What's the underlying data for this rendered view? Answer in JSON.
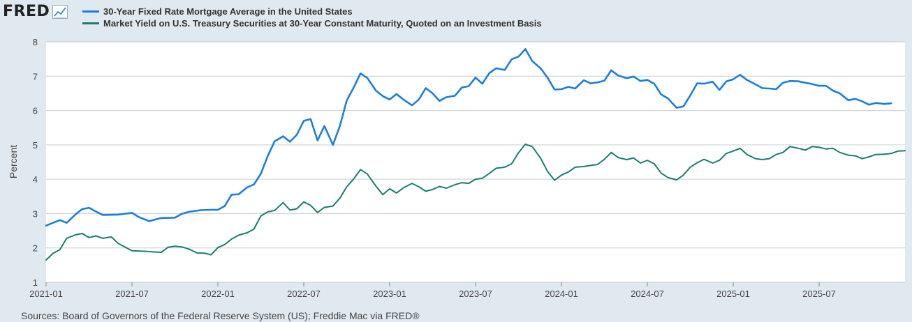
{
  "header": {
    "logo_text": "FRED",
    "logo_icon": "line-chart-icon"
  },
  "legend": [
    {
      "label": "30-Year Fixed Rate Mortgage Average in the United States",
      "color": "#1a7ee0"
    },
    {
      "label": "Market Yield on U.S. Treasury Securities at 30-Year Constant Maturity, Quoted on an Investment Basis",
      "color": "#177e6f"
    }
  ],
  "footer": {
    "source": "Sources: Board of Governors of the Federal Reserve System (US); Freddie Mac via FRED®"
  },
  "chart_data": {
    "type": "line",
    "title": "",
    "xlabel": "",
    "ylabel": "Percent",
    "ylim": [
      1,
      8
    ],
    "yticks": [
      1,
      2,
      3,
      4,
      5,
      6,
      7,
      8
    ],
    "xlim": [
      2021.0,
      2026.0
    ],
    "xticks": [
      {
        "label": "2021-01",
        "t": 2021.0
      },
      {
        "label": "2021-07",
        "t": 2021.5
      },
      {
        "label": "2022-01",
        "t": 2022.0
      },
      {
        "label": "2022-07",
        "t": 2022.5
      },
      {
        "label": "2023-01",
        "t": 2023.0
      },
      {
        "label": "2023-07",
        "t": 2023.5
      },
      {
        "label": "2024-01",
        "t": 2024.0
      },
      {
        "label": "2024-07",
        "t": 2024.5
      },
      {
        "label": "2025-01",
        "t": 2025.0
      },
      {
        "label": "2025-07",
        "t": 2025.5
      }
    ],
    "series": [
      {
        "name": "30-Year Fixed Rate Mortgage Average in the United States",
        "color": "#1a7ee0",
        "points": [
          [
            2021.0,
            2.65
          ],
          [
            2021.04,
            2.73
          ],
          [
            2021.08,
            2.81
          ],
          [
            2021.12,
            2.73
          ],
          [
            2021.17,
            2.97
          ],
          [
            2021.21,
            3.13
          ],
          [
            2021.25,
            3.17
          ],
          [
            2021.29,
            3.06
          ],
          [
            2021.33,
            2.96
          ],
          [
            2021.42,
            2.97
          ],
          [
            2021.5,
            3.02
          ],
          [
            2021.54,
            2.9
          ],
          [
            2021.6,
            2.78
          ],
          [
            2021.67,
            2.87
          ],
          [
            2021.75,
            2.88
          ],
          [
            2021.79,
            2.99
          ],
          [
            2021.83,
            3.05
          ],
          [
            2021.9,
            3.1
          ],
          [
            2021.96,
            3.11
          ],
          [
            2022.0,
            3.11
          ],
          [
            2022.04,
            3.22
          ],
          [
            2022.08,
            3.55
          ],
          [
            2022.12,
            3.56
          ],
          [
            2022.17,
            3.76
          ],
          [
            2022.21,
            3.85
          ],
          [
            2022.25,
            4.16
          ],
          [
            2022.29,
            4.67
          ],
          [
            2022.33,
            5.1
          ],
          [
            2022.38,
            5.25
          ],
          [
            2022.42,
            5.09
          ],
          [
            2022.46,
            5.3
          ],
          [
            2022.5,
            5.7
          ],
          [
            2022.54,
            5.75
          ],
          [
            2022.58,
            5.13
          ],
          [
            2022.62,
            5.55
          ],
          [
            2022.67,
            5.0
          ],
          [
            2022.71,
            5.55
          ],
          [
            2022.75,
            6.29
          ],
          [
            2022.79,
            6.66
          ],
          [
            2022.83,
            7.08
          ],
          [
            2022.87,
            6.95
          ],
          [
            2022.92,
            6.58
          ],
          [
            2022.96,
            6.42
          ],
          [
            2023.0,
            6.32
          ],
          [
            2023.04,
            6.48
          ],
          [
            2023.08,
            6.32
          ],
          [
            2023.13,
            6.15
          ],
          [
            2023.17,
            6.32
          ],
          [
            2023.21,
            6.65
          ],
          [
            2023.25,
            6.5
          ],
          [
            2023.29,
            6.28
          ],
          [
            2023.33,
            6.39
          ],
          [
            2023.38,
            6.43
          ],
          [
            2023.42,
            6.67
          ],
          [
            2023.46,
            6.71
          ],
          [
            2023.5,
            6.96
          ],
          [
            2023.54,
            6.78
          ],
          [
            2023.58,
            7.09
          ],
          [
            2023.62,
            7.23
          ],
          [
            2023.67,
            7.18
          ],
          [
            2023.71,
            7.49
          ],
          [
            2023.75,
            7.57
          ],
          [
            2023.79,
            7.79
          ],
          [
            2023.83,
            7.44
          ],
          [
            2023.88,
            7.22
          ],
          [
            2023.92,
            6.95
          ],
          [
            2023.96,
            6.61
          ],
          [
            2024.0,
            6.62
          ],
          [
            2024.04,
            6.69
          ],
          [
            2024.08,
            6.64
          ],
          [
            2024.13,
            6.88
          ],
          [
            2024.17,
            6.79
          ],
          [
            2024.21,
            6.82
          ],
          [
            2024.25,
            6.87
          ],
          [
            2024.29,
            7.17
          ],
          [
            2024.33,
            7.02
          ],
          [
            2024.38,
            6.94
          ],
          [
            2024.42,
            6.99
          ],
          [
            2024.46,
            6.86
          ],
          [
            2024.5,
            6.89
          ],
          [
            2024.54,
            6.78
          ],
          [
            2024.58,
            6.47
          ],
          [
            2024.62,
            6.35
          ],
          [
            2024.67,
            6.08
          ],
          [
            2024.71,
            6.12
          ],
          [
            2024.75,
            6.44
          ],
          [
            2024.79,
            6.79
          ],
          [
            2024.83,
            6.78
          ],
          [
            2024.88,
            6.84
          ],
          [
            2024.92,
            6.6
          ],
          [
            2024.96,
            6.85
          ],
          [
            2025.0,
            6.91
          ],
          [
            2025.04,
            7.04
          ],
          [
            2025.08,
            6.89
          ],
          [
            2025.13,
            6.76
          ],
          [
            2025.17,
            6.65
          ],
          [
            2025.21,
            6.64
          ],
          [
            2025.25,
            6.62
          ],
          [
            2025.29,
            6.81
          ],
          [
            2025.33,
            6.86
          ],
          [
            2025.38,
            6.85
          ],
          [
            2025.42,
            6.81
          ],
          [
            2025.46,
            6.77
          ],
          [
            2025.5,
            6.72
          ],
          [
            2025.54,
            6.72
          ],
          [
            2025.58,
            6.58
          ],
          [
            2025.62,
            6.5
          ],
          [
            2025.67,
            6.3
          ],
          [
            2025.71,
            6.34
          ],
          [
            2025.75,
            6.27
          ],
          [
            2025.79,
            6.17
          ],
          [
            2025.83,
            6.22
          ],
          [
            2025.88,
            6.19
          ],
          [
            2025.92,
            6.21
          ]
        ]
      },
      {
        "name": "Market Yield on U.S. Treasury Securities at 30-Year Constant Maturity, Quoted on an Investment Basis",
        "color": "#177e6f",
        "points": [
          [
            2021.0,
            1.65
          ],
          [
            2021.04,
            1.84
          ],
          [
            2021.08,
            1.95
          ],
          [
            2021.12,
            2.28
          ],
          [
            2021.17,
            2.38
          ],
          [
            2021.21,
            2.42
          ],
          [
            2021.25,
            2.3
          ],
          [
            2021.29,
            2.35
          ],
          [
            2021.33,
            2.28
          ],
          [
            2021.38,
            2.32
          ],
          [
            2021.42,
            2.13
          ],
          [
            2021.5,
            1.92
          ],
          [
            2021.58,
            1.9
          ],
          [
            2021.67,
            1.87
          ],
          [
            2021.71,
            2.02
          ],
          [
            2021.75,
            2.05
          ],
          [
            2021.79,
            2.03
          ],
          [
            2021.83,
            1.97
          ],
          [
            2021.88,
            1.85
          ],
          [
            2021.92,
            1.85
          ],
          [
            2021.96,
            1.8
          ],
          [
            2022.0,
            2.01
          ],
          [
            2022.04,
            2.1
          ],
          [
            2022.08,
            2.26
          ],
          [
            2022.12,
            2.37
          ],
          [
            2022.17,
            2.44
          ],
          [
            2022.21,
            2.55
          ],
          [
            2022.25,
            2.93
          ],
          [
            2022.29,
            3.05
          ],
          [
            2022.33,
            3.09
          ],
          [
            2022.38,
            3.32
          ],
          [
            2022.42,
            3.1
          ],
          [
            2022.46,
            3.14
          ],
          [
            2022.5,
            3.34
          ],
          [
            2022.54,
            3.24
          ],
          [
            2022.58,
            3.03
          ],
          [
            2022.62,
            3.18
          ],
          [
            2022.67,
            3.22
          ],
          [
            2022.71,
            3.45
          ],
          [
            2022.75,
            3.78
          ],
          [
            2022.79,
            4.0
          ],
          [
            2022.83,
            4.28
          ],
          [
            2022.87,
            4.15
          ],
          [
            2022.92,
            3.8
          ],
          [
            2022.96,
            3.55
          ],
          [
            2023.0,
            3.72
          ],
          [
            2023.04,
            3.6
          ],
          [
            2023.08,
            3.75
          ],
          [
            2023.13,
            3.88
          ],
          [
            2023.17,
            3.78
          ],
          [
            2023.21,
            3.65
          ],
          [
            2023.25,
            3.7
          ],
          [
            2023.29,
            3.79
          ],
          [
            2023.33,
            3.74
          ],
          [
            2023.38,
            3.84
          ],
          [
            2023.42,
            3.9
          ],
          [
            2023.46,
            3.88
          ],
          [
            2023.5,
            4.0
          ],
          [
            2023.54,
            4.03
          ],
          [
            2023.58,
            4.17
          ],
          [
            2023.62,
            4.32
          ],
          [
            2023.67,
            4.35
          ],
          [
            2023.71,
            4.45
          ],
          [
            2023.75,
            4.77
          ],
          [
            2023.79,
            5.02
          ],
          [
            2023.83,
            4.95
          ],
          [
            2023.88,
            4.6
          ],
          [
            2023.92,
            4.22
          ],
          [
            2023.96,
            3.97
          ],
          [
            2024.0,
            4.12
          ],
          [
            2024.04,
            4.21
          ],
          [
            2024.08,
            4.35
          ],
          [
            2024.13,
            4.37
          ],
          [
            2024.17,
            4.4
          ],
          [
            2024.21,
            4.43
          ],
          [
            2024.25,
            4.58
          ],
          [
            2024.29,
            4.78
          ],
          [
            2024.33,
            4.63
          ],
          [
            2024.38,
            4.57
          ],
          [
            2024.42,
            4.62
          ],
          [
            2024.46,
            4.47
          ],
          [
            2024.5,
            4.55
          ],
          [
            2024.54,
            4.45
          ],
          [
            2024.58,
            4.18
          ],
          [
            2024.62,
            4.05
          ],
          [
            2024.67,
            3.98
          ],
          [
            2024.71,
            4.12
          ],
          [
            2024.75,
            4.35
          ],
          [
            2024.79,
            4.48
          ],
          [
            2024.83,
            4.58
          ],
          [
            2024.88,
            4.47
          ],
          [
            2024.92,
            4.55
          ],
          [
            2024.96,
            4.75
          ],
          [
            2025.0,
            4.82
          ],
          [
            2025.04,
            4.9
          ],
          [
            2025.08,
            4.72
          ],
          [
            2025.13,
            4.6
          ],
          [
            2025.17,
            4.57
          ],
          [
            2025.21,
            4.6
          ],
          [
            2025.25,
            4.72
          ],
          [
            2025.29,
            4.78
          ],
          [
            2025.33,
            4.95
          ],
          [
            2025.38,
            4.9
          ],
          [
            2025.42,
            4.85
          ],
          [
            2025.46,
            4.95
          ],
          [
            2025.5,
            4.93
          ],
          [
            2025.54,
            4.88
          ],
          [
            2025.58,
            4.9
          ],
          [
            2025.62,
            4.78
          ],
          [
            2025.67,
            4.7
          ],
          [
            2025.71,
            4.68
          ],
          [
            2025.75,
            4.6
          ],
          [
            2025.79,
            4.65
          ],
          [
            2025.83,
            4.72
          ],
          [
            2025.88,
            4.73
          ],
          [
            2025.92,
            4.75
          ],
          [
            2025.96,
            4.82
          ],
          [
            2026.0,
            4.83
          ]
        ]
      }
    ]
  }
}
